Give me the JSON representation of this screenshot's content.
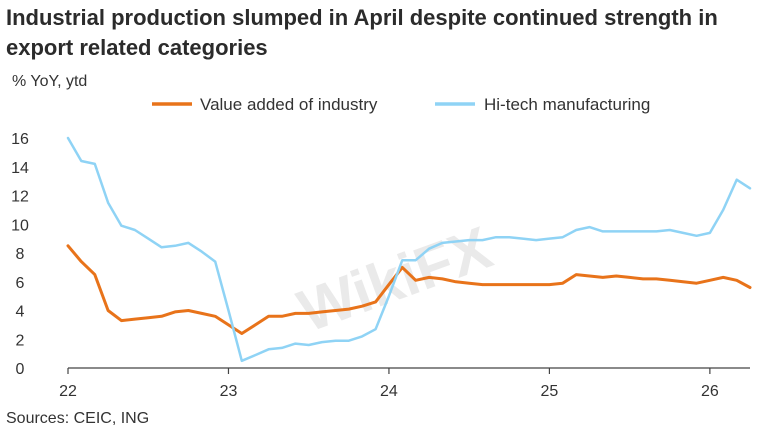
{
  "title": "Industrial production slumped in April despite continued strength in export related categories",
  "ylabel": "% YoY, ytd",
  "source": "Sources: CEIC, ING",
  "watermark": "WikiFX",
  "chart_data": {
    "type": "line",
    "title": "Industrial production slumped in April despite continued strength in export related categories",
    "ylabel": "% YoY, ytd",
    "xlabel": "",
    "ylim": [
      0,
      16
    ],
    "yticks": [
      0,
      2,
      4,
      6,
      8,
      10,
      12,
      14,
      16
    ],
    "xlim": [
      22.0,
      26.25
    ],
    "xticks": [
      22,
      23,
      24,
      25,
      26
    ],
    "xtick_labels": [
      "22",
      "23",
      "24",
      "25",
      "26"
    ],
    "grid": false,
    "legend_position": "top",
    "series": [
      {
        "name": "Value added of industry",
        "color": "#E8731A",
        "x": [
          22.0,
          22.083,
          22.167,
          22.25,
          22.333,
          22.417,
          22.5,
          22.583,
          22.667,
          22.75,
          22.833,
          22.917,
          23.0,
          23.083,
          23.167,
          23.25,
          23.333,
          23.417,
          23.5,
          23.583,
          23.667,
          23.75,
          23.833,
          23.917,
          24.0,
          24.083,
          24.167,
          24.25,
          24.333,
          24.417,
          24.5,
          24.583,
          24.667,
          24.75,
          24.833,
          24.917,
          25.0,
          25.083,
          25.167,
          25.25,
          25.333,
          25.417,
          25.5,
          25.583,
          25.667,
          25.75,
          25.833,
          25.917,
          26.0,
          26.083,
          26.167,
          26.25
        ],
        "values": [
          8.5,
          7.4,
          6.5,
          4.0,
          3.3,
          3.4,
          3.5,
          3.6,
          3.9,
          4.0,
          3.8,
          3.6,
          3.0,
          2.4,
          3.0,
          3.6,
          3.6,
          3.8,
          3.8,
          3.9,
          4.0,
          4.1,
          4.3,
          4.6,
          5.8,
          7.0,
          6.1,
          6.3,
          6.2,
          6.0,
          5.9,
          5.8,
          5.8,
          5.8,
          5.8,
          5.8,
          5.8,
          5.9,
          6.5,
          6.4,
          6.3,
          6.4,
          6.3,
          6.2,
          6.2,
          6.1,
          6.0,
          5.9,
          6.1,
          6.3,
          6.1,
          5.6
        ]
      },
      {
        "name": "Hi-tech manufacturing",
        "color": "#8FD3F5",
        "x": [
          22.0,
          22.083,
          22.167,
          22.25,
          22.333,
          22.417,
          22.5,
          22.583,
          22.667,
          22.75,
          22.833,
          22.917,
          23.0,
          23.083,
          23.167,
          23.25,
          23.333,
          23.417,
          23.5,
          23.583,
          23.667,
          23.75,
          23.833,
          23.917,
          24.0,
          24.083,
          24.167,
          24.25,
          24.333,
          24.417,
          24.5,
          24.583,
          24.667,
          24.75,
          24.833,
          24.917,
          25.0,
          25.083,
          25.167,
          25.25,
          25.333,
          25.417,
          25.5,
          25.583,
          25.667,
          25.75,
          25.833,
          25.917,
          26.0,
          26.083,
          26.167,
          26.25
        ],
        "values": [
          16.0,
          14.4,
          14.2,
          11.5,
          9.9,
          9.6,
          9.0,
          8.4,
          8.5,
          8.7,
          8.1,
          7.4,
          4.0,
          0.5,
          0.9,
          1.3,
          1.4,
          1.7,
          1.6,
          1.8,
          1.9,
          1.9,
          2.2,
          2.7,
          5.0,
          7.5,
          7.5,
          8.3,
          8.7,
          8.8,
          8.9,
          8.9,
          9.1,
          9.1,
          9.0,
          8.9,
          9.0,
          9.1,
          9.6,
          9.8,
          9.5,
          9.5,
          9.5,
          9.5,
          9.5,
          9.6,
          9.4,
          9.2,
          9.4,
          11.0,
          13.1,
          12.5
        ]
      }
    ]
  }
}
